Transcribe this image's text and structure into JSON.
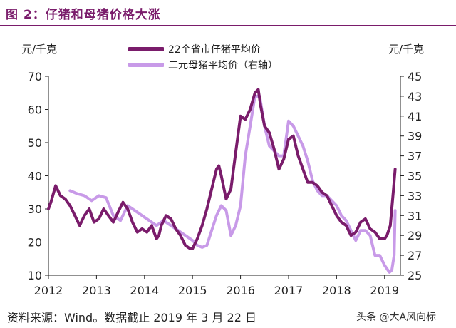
{
  "figure": {
    "title": "图 2：仔猪和母猪价格大涨",
    "source": "资料来源：Wind。数据截止 2019 年 3 月 22 日",
    "watermark": "头条 @大A风向标"
  },
  "chart_data": {
    "type": "line",
    "left_unit": "元/千克",
    "right_unit": "元/千克",
    "xlim": [
      2012,
      2019.33
    ],
    "x_ticks": [
      "2012",
      "2013",
      "2014",
      "2015",
      "2016",
      "2017",
      "2018",
      "2019"
    ],
    "y_left_lim": [
      10,
      70
    ],
    "y_left_ticks": [
      10,
      20,
      30,
      40,
      50,
      60,
      70
    ],
    "y_right_lim": [
      25,
      45
    ],
    "y_right_ticks": [
      25,
      27,
      29,
      31,
      33,
      35,
      37,
      39,
      41,
      43,
      45
    ],
    "grid": false,
    "legend_position": "top-center",
    "series": [
      {
        "name": "22个省市仔猪平均价",
        "axis": "left",
        "color": "#7a1c6b",
        "x": [
          2012.0,
          2012.05,
          2012.15,
          2012.25,
          2012.35,
          2012.45,
          2012.55,
          2012.65,
          2012.75,
          2012.85,
          2012.95,
          2013.05,
          2013.15,
          2013.25,
          2013.35,
          2013.45,
          2013.55,
          2013.65,
          2013.75,
          2013.85,
          2013.95,
          2014.05,
          2014.15,
          2014.25,
          2014.3,
          2014.35,
          2014.45,
          2014.55,
          2014.65,
          2014.75,
          2014.85,
          2014.95,
          2015.0,
          2015.1,
          2015.2,
          2015.3,
          2015.4,
          2015.5,
          2015.55,
          2015.6,
          2015.7,
          2015.8,
          2015.9,
          2016.0,
          2016.1,
          2016.2,
          2016.3,
          2016.37,
          2016.42,
          2016.5,
          2016.6,
          2016.7,
          2016.8,
          2016.9,
          2017.0,
          2017.1,
          2017.2,
          2017.3,
          2017.4,
          2017.5,
          2017.6,
          2017.7,
          2017.8,
          2017.9,
          2018.0,
          2018.1,
          2018.2,
          2018.3,
          2018.4,
          2018.5,
          2018.6,
          2018.7,
          2018.8,
          2018.9,
          2019.0,
          2019.05,
          2019.12,
          2019.18,
          2019.22
        ],
        "values": [
          30,
          32,
          37,
          34,
          33,
          31,
          28,
          25,
          28,
          30,
          26,
          27,
          30,
          28,
          26,
          29,
          32,
          30,
          26,
          23,
          24,
          23,
          25,
          21,
          22,
          25,
          28,
          27,
          24,
          22,
          19,
          18,
          18,
          21,
          25,
          30,
          36,
          42,
          43,
          40,
          33,
          36,
          47,
          58,
          57,
          60,
          65,
          66,
          61,
          55,
          53,
          48,
          42,
          45,
          51,
          52,
          46,
          42,
          38,
          38,
          37,
          35,
          34,
          31,
          28,
          26,
          25,
          22,
          23,
          26,
          27,
          24,
          23,
          21,
          21,
          22,
          25,
          35,
          42
        ]
      },
      {
        "name": "二元母猪平均价（右轴）",
        "axis": "right",
        "color": "#c89ae8",
        "x": [
          2012.45,
          2012.6,
          2012.75,
          2012.9,
          2013.05,
          2013.2,
          2013.35,
          2013.5,
          2013.65,
          2013.8,
          2013.95,
          2014.1,
          2014.25,
          2014.4,
          2014.55,
          2014.7,
          2014.85,
          2015.0,
          2015.1,
          2015.2,
          2015.3,
          2015.4,
          2015.5,
          2015.6,
          2015.7,
          2015.8,
          2015.9,
          2016.0,
          2016.1,
          2016.2,
          2016.3,
          2016.4,
          2016.5,
          2016.6,
          2016.7,
          2016.8,
          2016.9,
          2017.0,
          2017.1,
          2017.2,
          2017.3,
          2017.4,
          2017.5,
          2017.6,
          2017.7,
          2017.8,
          2017.9,
          2018.0,
          2018.1,
          2018.2,
          2018.3,
          2018.4,
          2018.5,
          2018.6,
          2018.7,
          2018.8,
          2018.9,
          2019.0,
          2019.1,
          2019.15,
          2019.2,
          2019.22
        ],
        "values": [
          33.5,
          33.2,
          33.0,
          32.5,
          33.0,
          32.8,
          31.0,
          30.5,
          32.0,
          31.5,
          31.0,
          30.5,
          30.0,
          30.5,
          30.0,
          29.5,
          29.0,
          28.5,
          28.0,
          27.8,
          28.0,
          29.5,
          31.0,
          32.0,
          31.5,
          29.0,
          30.0,
          32.0,
          37.0,
          40.0,
          43.0,
          43.0,
          40.0,
          38.0,
          37.5,
          37.0,
          37.0,
          40.5,
          40.0,
          39.0,
          38.0,
          36.5,
          34.5,
          33.5,
          33.0,
          33.0,
          32.5,
          32.0,
          31.0,
          30.5,
          29.5,
          28.5,
          29.5,
          29.5,
          29.0,
          27.0,
          27.0,
          26.0,
          25.3,
          25.5,
          27.0,
          31.5
        ]
      }
    ]
  }
}
